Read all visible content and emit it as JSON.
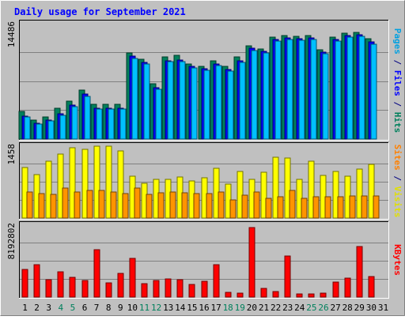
{
  "chart_data": {
    "type": "bar",
    "title": "Daily usage for September 2021",
    "x": [
      "1",
      "2",
      "3",
      "4",
      "5",
      "6",
      "7",
      "8",
      "9",
      "10",
      "11",
      "12",
      "13",
      "14",
      "15",
      "16",
      "17",
      "18",
      "19",
      "20",
      "21",
      "22",
      "23",
      "24",
      "25",
      "26",
      "27",
      "28",
      "29",
      "30",
      "31"
    ],
    "weekend_days": [
      "4",
      "5",
      "11",
      "12",
      "18",
      "19",
      "25",
      "26"
    ],
    "panels": [
      {
        "id": "top",
        "ymax_label": "14486",
        "ylim": [
          0,
          14486
        ],
        "right_label": [
          {
            "text": "Pages",
            "color": "#00a0e0"
          },
          {
            "text": " / ",
            "color": "#000080"
          },
          {
            "text": "Files",
            "color": "#0000ff"
          },
          {
            "text": " / ",
            "color": "#000080"
          },
          {
            "text": "Hits",
            "color": "#00805c"
          }
        ],
        "series": [
          {
            "name": "Hits",
            "color": "#00805c",
            "values": [
              3400,
              2400,
              2800,
              3800,
              4700,
              6100,
              4300,
              4300,
              4300,
              10700,
              10000,
              6900,
              10200,
              10400,
              9400,
              9100,
              9800,
              9100,
              10200,
              11600,
              11200,
              12700,
              12900,
              12800,
              12900,
              11100,
              12700,
              13200,
              13300,
              12500,
              null
            ]
          },
          {
            "name": "Files",
            "color": "#0000ff",
            "values": [
              2900,
              2000,
              2400,
              3200,
              4200,
              5600,
              3800,
              3800,
              3800,
              10300,
              9600,
              6400,
              9800,
              9900,
              9100,
              8800,
              9400,
              8700,
              9800,
              11300,
              10900,
              12400,
              12600,
              12500,
              12600,
              10800,
              12400,
              12900,
              13000,
              12100,
              null
            ]
          },
          {
            "name": "Pages",
            "color": "#00c0ff",
            "values": [
              2800,
              1900,
              2300,
              3000,
              4000,
              5300,
              3700,
              3700,
              3700,
              10100,
              9400,
              6200,
              9700,
              9700,
              8900,
              8600,
              9200,
              8500,
              9600,
              11000,
              10700,
              12200,
              12400,
              12300,
              12400,
              10600,
              12200,
              12700,
              12800,
              11800,
              null
            ]
          }
        ]
      },
      {
        "id": "middle",
        "ymax_label": "1458",
        "ylim": [
          0,
          1458
        ],
        "right_label": [
          {
            "text": "Sites",
            "color": "#ff8000"
          },
          {
            "text": " / ",
            "color": "#000080"
          },
          {
            "text": "Visits",
            "color": "#e0e000"
          }
        ],
        "series": [
          {
            "name": "Visits",
            "color": "#ffff00",
            "values": [
              1010,
              870,
              1140,
              1280,
              1410,
              1380,
              1450,
              1440,
              1340,
              840,
              700,
              780,
              770,
              820,
              750,
              810,
              1000,
              680,
              940,
              770,
              920,
              1220,
              1210,
              780,
              1140,
              860,
              940,
              840,
              980,
              1070,
              null
            ]
          },
          {
            "name": "Sites",
            "color": "#ff9400",
            "values": [
              520,
              490,
              470,
              600,
              530,
              550,
              560,
              530,
              490,
              600,
              480,
              500,
              520,
              500,
              490,
              490,
              520,
              360,
              460,
              520,
              400,
              430,
              550,
              400,
              420,
              430,
              430,
              440,
              450,
              440,
              null
            ]
          }
        ]
      },
      {
        "id": "bottom",
        "ymax_label": "8192802",
        "ylim": [
          0,
          8192802
        ],
        "right_label": [
          {
            "text": "KBytes",
            "color": "#ff0000"
          }
        ],
        "series": [
          {
            "name": "KBytes",
            "color": "#ff0000",
            "values": [
              3140000,
              3670000,
              2000000,
              2850000,
              2190000,
              1880000,
              5370000,
              1630000,
              2650000,
              4320000,
              1490000,
              1910000,
              2040000,
              1930000,
              1440000,
              1780000,
              3660000,
              500000,
              460000,
              7830000,
              1000000,
              630000,
              4670000,
              340000,
              390000,
              460000,
              1680000,
              2130000,
              5680000,
              2310000,
              null
            ]
          }
        ]
      }
    ]
  }
}
